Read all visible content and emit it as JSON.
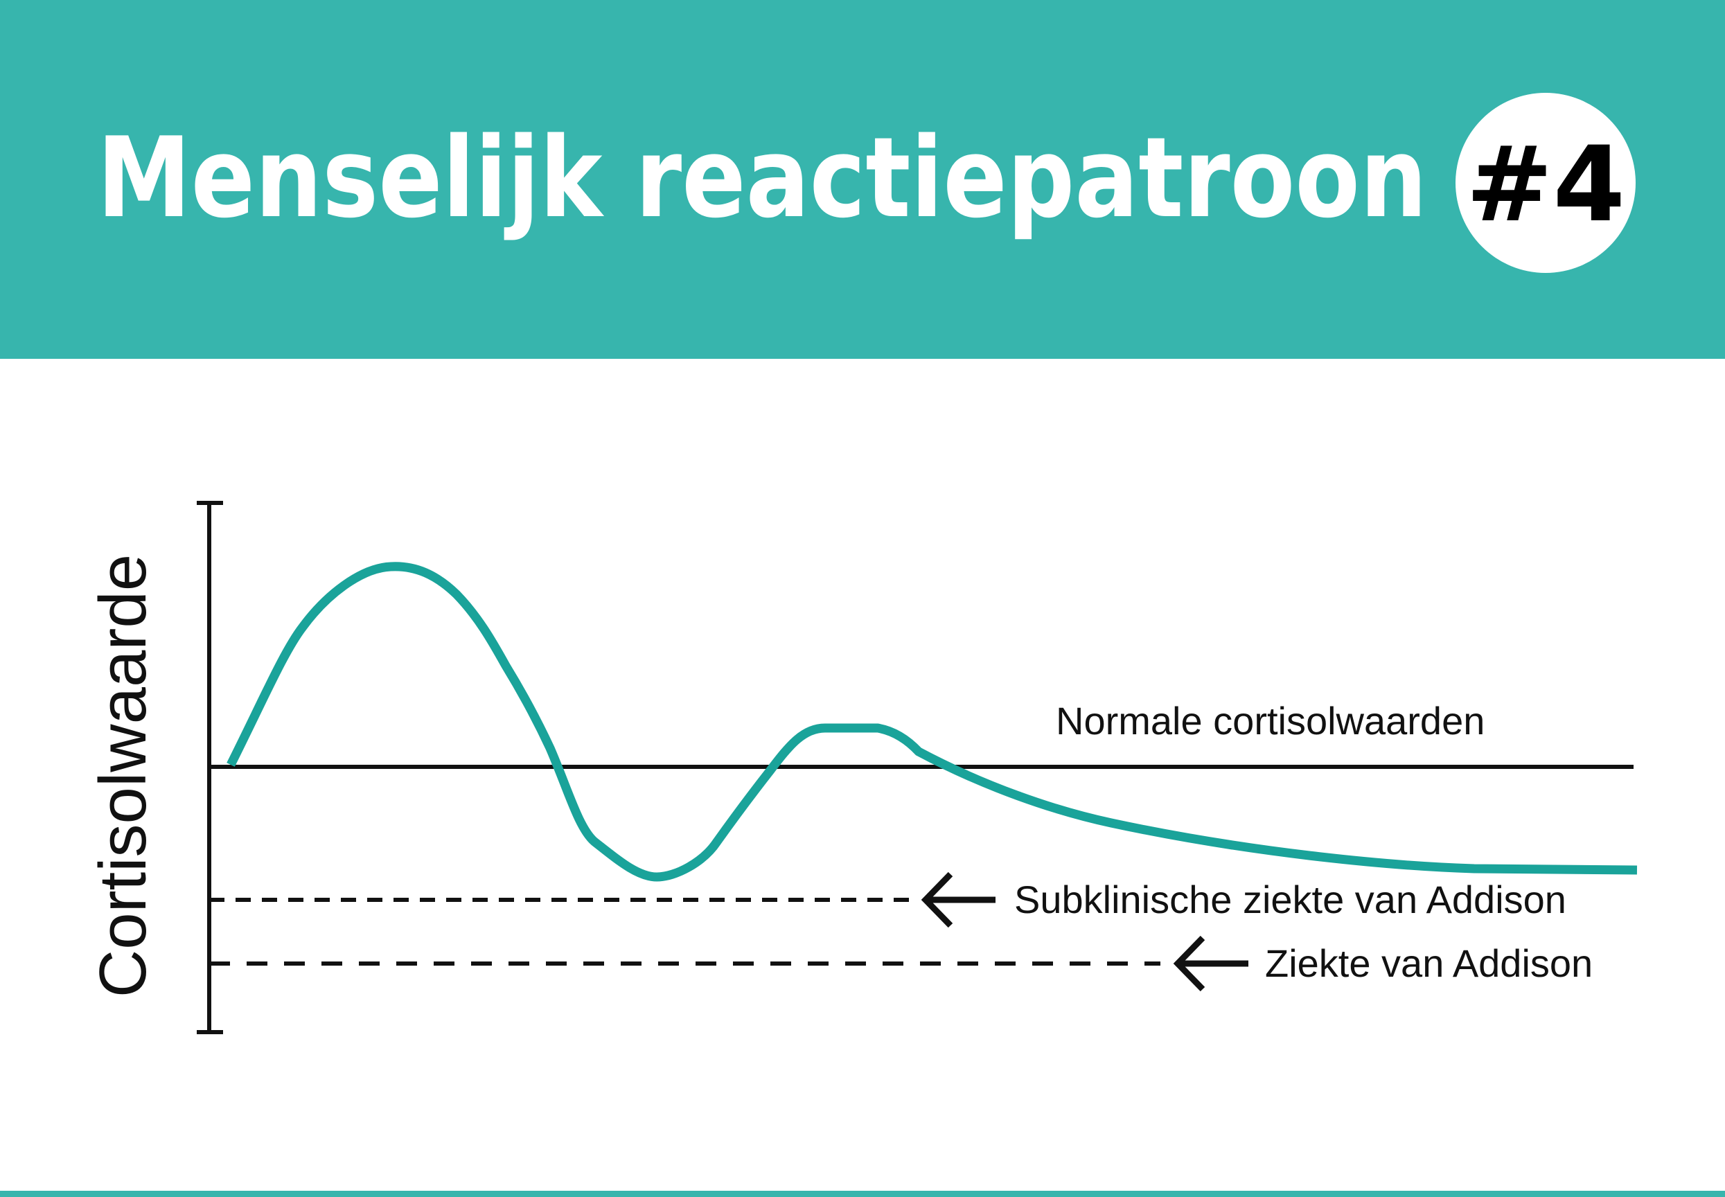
{
  "header": {
    "title": "Menselijk reactiepatroon",
    "badge": "#4"
  },
  "diagram": {
    "y_axis_label": "Cortisolwaarde",
    "reference_lines": [
      {
        "label": "Normale cortisolwaarden"
      },
      {
        "label": "Subklinische ziekte van Addison"
      },
      {
        "label": "Ziekte van Addison"
      }
    ]
  }
}
